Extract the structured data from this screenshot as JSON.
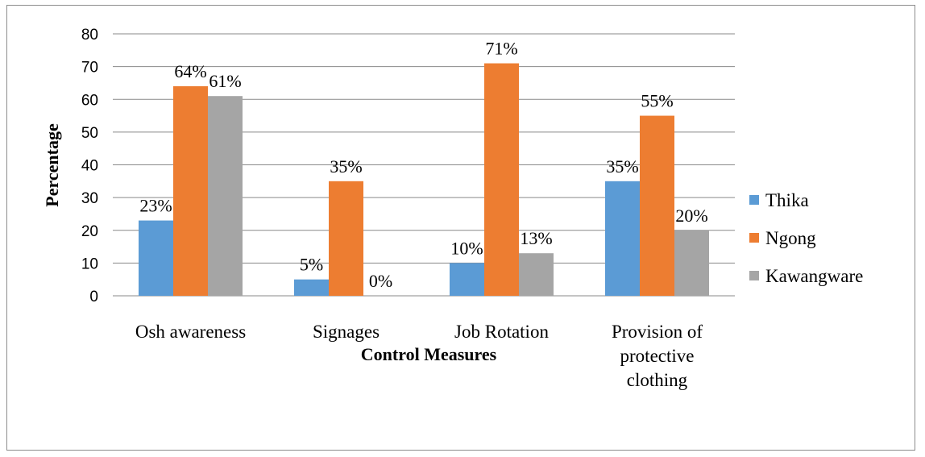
{
  "chart_data": {
    "type": "bar",
    "xlabel": "Control Measures",
    "ylabel": "Percentage",
    "ylim": [
      0,
      80
    ],
    "yticks": [
      0,
      10,
      20,
      30,
      40,
      50,
      60,
      70,
      80
    ],
    "grid": true,
    "legend_position": "right",
    "categories": [
      [
        "Osh awareness"
      ],
      [
        "Signages"
      ],
      [
        "Job Rotation"
      ],
      [
        "Provision of",
        "protective",
        "clothing"
      ]
    ],
    "series": [
      {
        "name": "Thika",
        "color": "#5b9bd5",
        "values": [
          23,
          5,
          10,
          35
        ],
        "labels": [
          "23%",
          "5%",
          "10%",
          "35%"
        ]
      },
      {
        "name": "Ngong",
        "color": "#ed7d31",
        "values": [
          64,
          35,
          71,
          55
        ],
        "labels": [
          "64%",
          "35%",
          "71%",
          "55%"
        ]
      },
      {
        "name": "Kawangware",
        "color": "#a5a5a5",
        "values": [
          61,
          0,
          13,
          20
        ],
        "labels": [
          "61%",
          "0%",
          "13%",
          "20%"
        ]
      }
    ]
  }
}
